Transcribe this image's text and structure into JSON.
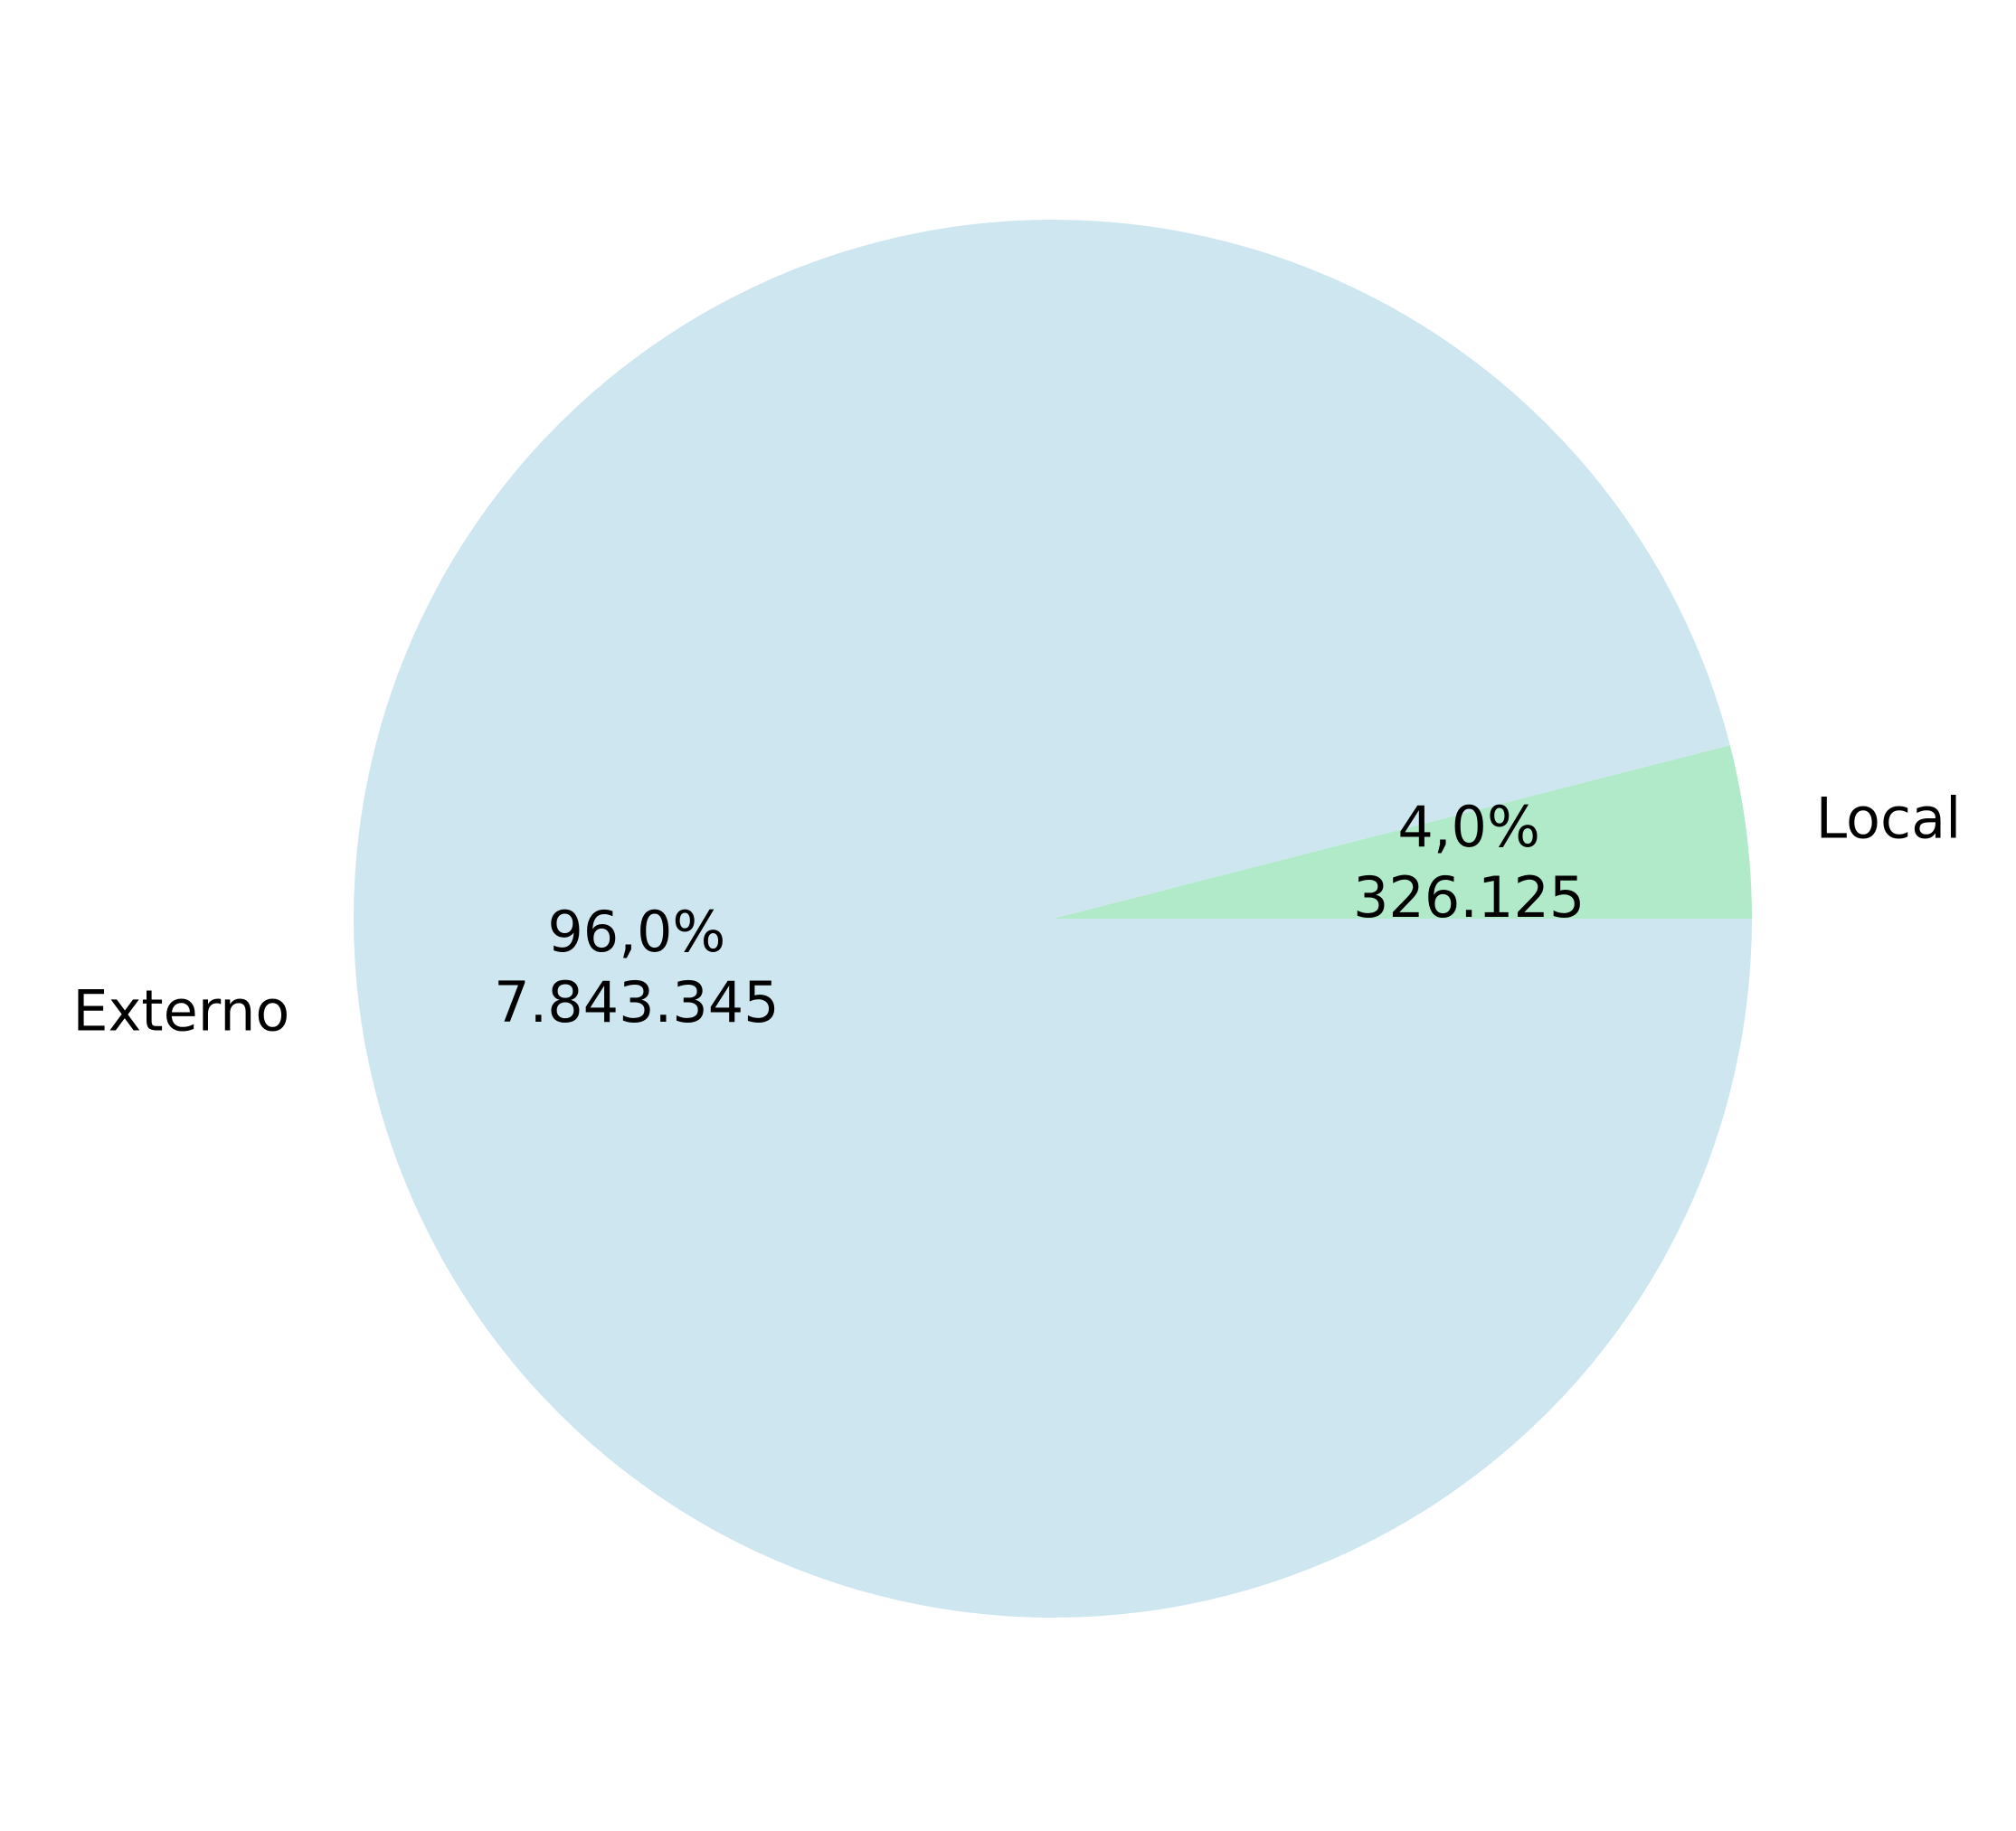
{
  "chart_data": {
    "type": "pie",
    "title": "",
    "start_angle_deg": 0,
    "direction": "counterclockwise",
    "slices": [
      {
        "label": "Local",
        "value": 326125,
        "value_label": "326.125",
        "percent_label": "4,0%",
        "color": "#b0eac8"
      },
      {
        "label": "Externo",
        "value": 7843345,
        "value_label": "7.843.345",
        "percent_label": "96,0%",
        "color": "#cde6f0"
      }
    ]
  }
}
